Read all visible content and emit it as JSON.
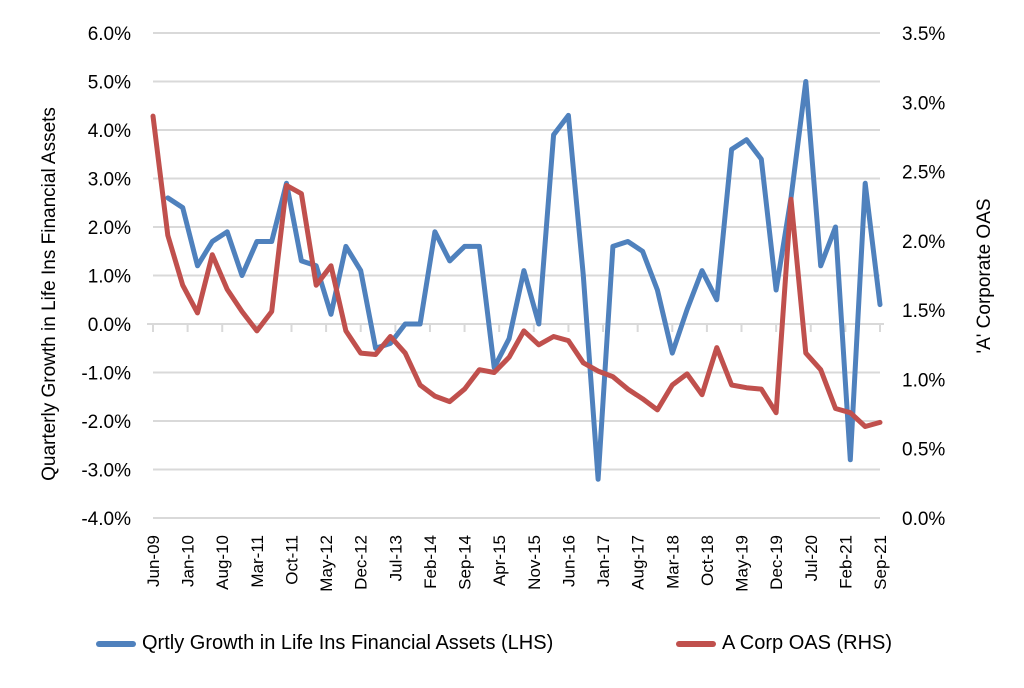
{
  "chart_data": {
    "type": "line",
    "title": "",
    "xlabel": "",
    "ylabel_left": "Quarterly Growth in Life Ins Financial Assets",
    "ylabel_right": "'A' Corporate OAS",
    "y_left": {
      "min": -4.0,
      "max": 6.0,
      "step": 1.0,
      "tick_labels": [
        "-4.0%",
        "-3.0%",
        "-2.0%",
        "-1.0%",
        "0.0%",
        "1.0%",
        "2.0%",
        "3.0%",
        "4.0%",
        "5.0%",
        "6.0%"
      ]
    },
    "y_right": {
      "min": 0.0,
      "max": 3.5,
      "step": 0.5,
      "tick_labels": [
        "0.0%",
        "0.5%",
        "1.0%",
        "1.5%",
        "2.0%",
        "2.5%",
        "3.0%",
        "3.5%"
      ]
    },
    "grid": true,
    "legend_position": "bottom",
    "x": [
      "Jun-09",
      "Sep-09",
      "Dec-09",
      "Mar-10",
      "Jun-10",
      "Sep-10",
      "Dec-10",
      "Mar-11",
      "Jun-11",
      "Sep-11",
      "Dec-11",
      "Mar-12",
      "Jun-12",
      "Sep-12",
      "Dec-12",
      "Mar-13",
      "Jun-13",
      "Sep-13",
      "Dec-13",
      "Mar-14",
      "Jun-14",
      "Sep-14",
      "Dec-14",
      "Mar-15",
      "Jun-15",
      "Sep-15",
      "Dec-15",
      "Mar-16",
      "Jun-16",
      "Sep-16",
      "Dec-16",
      "Mar-17",
      "Jun-17",
      "Sep-17",
      "Dec-17",
      "Mar-18",
      "Jun-18",
      "Sep-18",
      "Dec-18",
      "Mar-19",
      "Jun-19",
      "Sep-19",
      "Dec-19",
      "Mar-20",
      "Jun-20",
      "Sep-20",
      "Dec-20",
      "Mar-21",
      "Jun-21",
      "Sep-21"
    ],
    "x_tick_labels": [
      "Jun-09",
      "Jan-10",
      "Aug-10",
      "Mar-11",
      "Oct-11",
      "May-12",
      "Dec-12",
      "Jul-13",
      "Feb-14",
      "Sep-14",
      "Apr-15",
      "Nov-15",
      "Jun-16",
      "Jan-17",
      "Aug-17",
      "Mar-18",
      "Oct-18",
      "May-19",
      "Dec-19",
      "Jul-20",
      "Feb-21",
      "Sep-21"
    ],
    "series": [
      {
        "name": "Qrtly Growth in Life Ins Financial Assets (LHS)",
        "axis": "left",
        "color": "#4f81bd",
        "values": [
          null,
          2.6,
          2.4,
          1.2,
          1.7,
          1.9,
          1.0,
          1.7,
          1.7,
          2.9,
          1.3,
          1.2,
          0.2,
          1.6,
          1.1,
          -0.5,
          -0.4,
          0.0,
          0.0,
          1.9,
          1.3,
          1.6,
          1.6,
          -0.9,
          -0.3,
          1.1,
          0.0,
          3.9,
          4.3,
          1.0,
          -3.2,
          1.6,
          1.7,
          1.5,
          0.7,
          -0.6,
          0.3,
          1.1,
          0.5,
          3.6,
          3.8,
          3.4,
          0.7,
          2.6,
          5.0,
          1.2,
          2.0,
          -2.8,
          2.9,
          0.4
        ]
      },
      {
        "name": "A Corp OAS (RHS)",
        "axis": "right",
        "color": "#c0504d",
        "values": [
          2.9,
          2.04,
          1.68,
          1.48,
          1.9,
          1.65,
          1.49,
          1.35,
          1.49,
          2.4,
          2.34,
          1.68,
          1.82,
          1.35,
          1.19,
          1.18,
          1.31,
          1.19,
          0.96,
          0.88,
          0.84,
          0.93,
          1.07,
          1.05,
          1.16,
          1.35,
          1.25,
          1.31,
          1.28,
          1.12,
          1.06,
          1.02,
          0.93,
          0.86,
          0.78,
          0.96,
          1.04,
          0.89,
          1.23,
          0.96,
          0.94,
          0.93,
          0.76,
          2.3,
          1.19,
          1.07,
          0.79,
          0.76,
          0.66,
          0.69
        ]
      }
    ]
  }
}
